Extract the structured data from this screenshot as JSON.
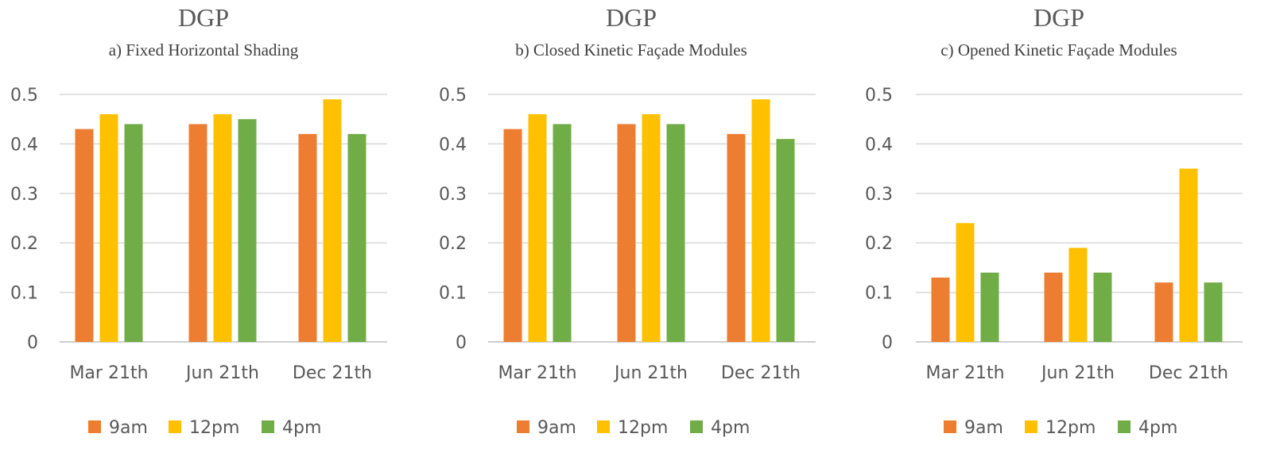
{
  "chart_data": [
    {
      "type": "bar",
      "title": "DGP",
      "subtitle": "a) Fixed Horizontal Shading",
      "categories": [
        "Mar 21th",
        "Jun 21th",
        "Dec 21th"
      ],
      "series": [
        {
          "name": "9am",
          "color": "#ED7D31",
          "values": [
            0.43,
            0.44,
            0.42
          ]
        },
        {
          "name": "12pm",
          "color": "#FFC000",
          "values": [
            0.46,
            0.46,
            0.49
          ]
        },
        {
          "name": "4pm",
          "color": "#70AD47",
          "values": [
            0.44,
            0.45,
            0.42
          ]
        }
      ],
      "ylim": [
        0,
        0.5
      ],
      "yticks": [
        "0",
        "0.1",
        "0.2",
        "0.3",
        "0.4",
        "0.5"
      ],
      "grid": true,
      "legend": "bottom"
    },
    {
      "type": "bar",
      "title": "DGP",
      "subtitle": "b) Closed Kinetic Façade Modules",
      "categories": [
        "Mar 21th",
        "Jun 21th",
        "Dec 21th"
      ],
      "series": [
        {
          "name": "9am",
          "color": "#ED7D31",
          "values": [
            0.43,
            0.44,
            0.42
          ]
        },
        {
          "name": "12pm",
          "color": "#FFC000",
          "values": [
            0.46,
            0.46,
            0.49
          ]
        },
        {
          "name": "4pm",
          "color": "#70AD47",
          "values": [
            0.44,
            0.44,
            0.41
          ]
        }
      ],
      "ylim": [
        0,
        0.5
      ],
      "yticks": [
        "0",
        "0.1",
        "0.2",
        "0.3",
        "0.4",
        "0.5"
      ],
      "grid": true,
      "legend": "bottom"
    },
    {
      "type": "bar",
      "title": "DGP",
      "subtitle": "c) Opened Kinetic Façade Modules",
      "categories": [
        "Mar 21th",
        "Jun 21th",
        "Dec 21th"
      ],
      "series": [
        {
          "name": "9am",
          "color": "#ED7D31",
          "values": [
            0.13,
            0.14,
            0.12
          ]
        },
        {
          "name": "12pm",
          "color": "#FFC000",
          "values": [
            0.24,
            0.19,
            0.35
          ]
        },
        {
          "name": "4pm",
          "color": "#70AD47",
          "values": [
            0.14,
            0.14,
            0.12
          ]
        }
      ],
      "ylim": [
        0,
        0.5
      ],
      "yticks": [
        "0",
        "0.1",
        "0.2",
        "0.3",
        "0.4",
        "0.5"
      ],
      "grid": true,
      "legend": "bottom"
    }
  ]
}
